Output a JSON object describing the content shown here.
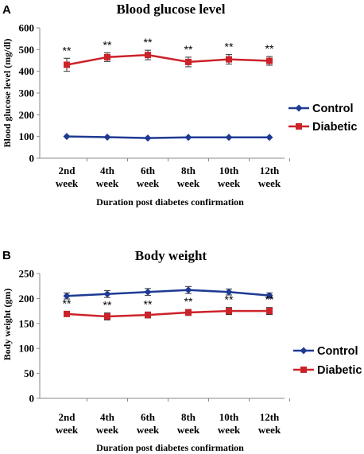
{
  "chart_data": [
    {
      "type": "line",
      "panel_label": "A",
      "title": "Blood glucose level",
      "xlabel": "Duration post diabetes confirmation",
      "ylabel": "Blood glucose level (mg/dl)",
      "ylim": [
        0,
        600
      ],
      "yticks": [
        0,
        100,
        200,
        300,
        400,
        500,
        600
      ],
      "categories": [
        {
          "line1": "2nd",
          "line2": "week"
        },
        {
          "line1": "4th",
          "line2": "week"
        },
        {
          "line1": "6th",
          "line2": "week"
        },
        {
          "line1": "8th",
          "line2": "week"
        },
        {
          "line1": "10th",
          "line2": "week"
        },
        {
          "line1": "12th",
          "line2": "week"
        }
      ],
      "legend_position": "right",
      "series": [
        {
          "name": "Control",
          "color": "#1f3a93",
          "marker": "diamond",
          "values": [
            100,
            97,
            93,
            96,
            96,
            96
          ],
          "errors": [
            0,
            0,
            0,
            0,
            0,
            0
          ],
          "annotations": [
            "",
            "",
            "",
            "",
            "",
            ""
          ]
        },
        {
          "name": "Diabetic",
          "color": "#cc2229",
          "marker": "square",
          "values": [
            430,
            465,
            475,
            443,
            455,
            448
          ],
          "errors": [
            30,
            20,
            22,
            22,
            22,
            20
          ],
          "annotations": [
            "**",
            "**",
            "**",
            "**",
            "**",
            "**"
          ]
        }
      ]
    },
    {
      "type": "line",
      "panel_label": "B",
      "title": "Body weight",
      "xlabel": "Duration post diabetes confirmation",
      "ylabel": "Body weight (gm)",
      "ylim": [
        0,
        250
      ],
      "yticks": [
        0,
        50,
        100,
        150,
        200,
        250
      ],
      "categories": [
        {
          "line1": "2nd",
          "line2": "week"
        },
        {
          "line1": "4th",
          "line2": "week"
        },
        {
          "line1": "6th",
          "line2": "week"
        },
        {
          "line1": "8th",
          "line2": "week"
        },
        {
          "line1": "10th",
          "line2": "week"
        },
        {
          "line1": "12th",
          "line2": "week"
        }
      ],
      "legend_position": "right",
      "series": [
        {
          "name": "Control",
          "color": "#1f3a93",
          "marker": "diamond",
          "values": [
            205,
            209,
            213,
            217,
            213,
            206
          ],
          "errors": [
            6,
            7,
            7,
            7,
            6,
            5
          ],
          "annotations": [
            "",
            "",
            "",
            "",
            "",
            ""
          ]
        },
        {
          "name": "Diabetic",
          "color": "#cc2229",
          "marker": "square",
          "values": [
            169,
            164,
            167,
            172,
            175,
            175
          ],
          "errors": [
            5,
            7,
            6,
            6,
            7,
            7
          ],
          "annotations": [
            "**",
            "**",
            "**",
            "**",
            "**",
            "**"
          ]
        }
      ]
    }
  ]
}
